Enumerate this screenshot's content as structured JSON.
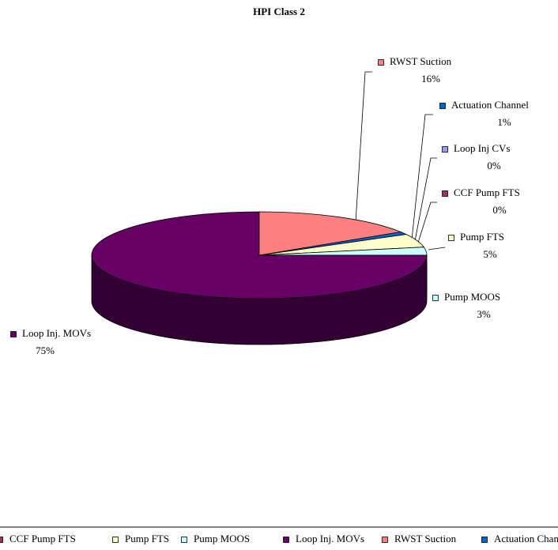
{
  "chart_data": {
    "type": "pie",
    "title": "HPI Class 2",
    "categories": [
      "Loop Inj CVs",
      "CCF Pump FTS",
      "Pump FTS",
      "Pump MOOS",
      "Loop Inj. MOVs",
      "RWST Suction",
      "Actuation Channel"
    ],
    "values": [
      0,
      0,
      5,
      3,
      75,
      16,
      1
    ],
    "value_labels": [
      "0%",
      "0%",
      "5%",
      "3%",
      "75%",
      "16%",
      "1%"
    ],
    "colors": [
      "#9999ff",
      "#993366",
      "#ffffcc",
      "#ccffff",
      "#660066",
      "#ff8080",
      "#0066cc"
    ],
    "legend": "bottom"
  }
}
